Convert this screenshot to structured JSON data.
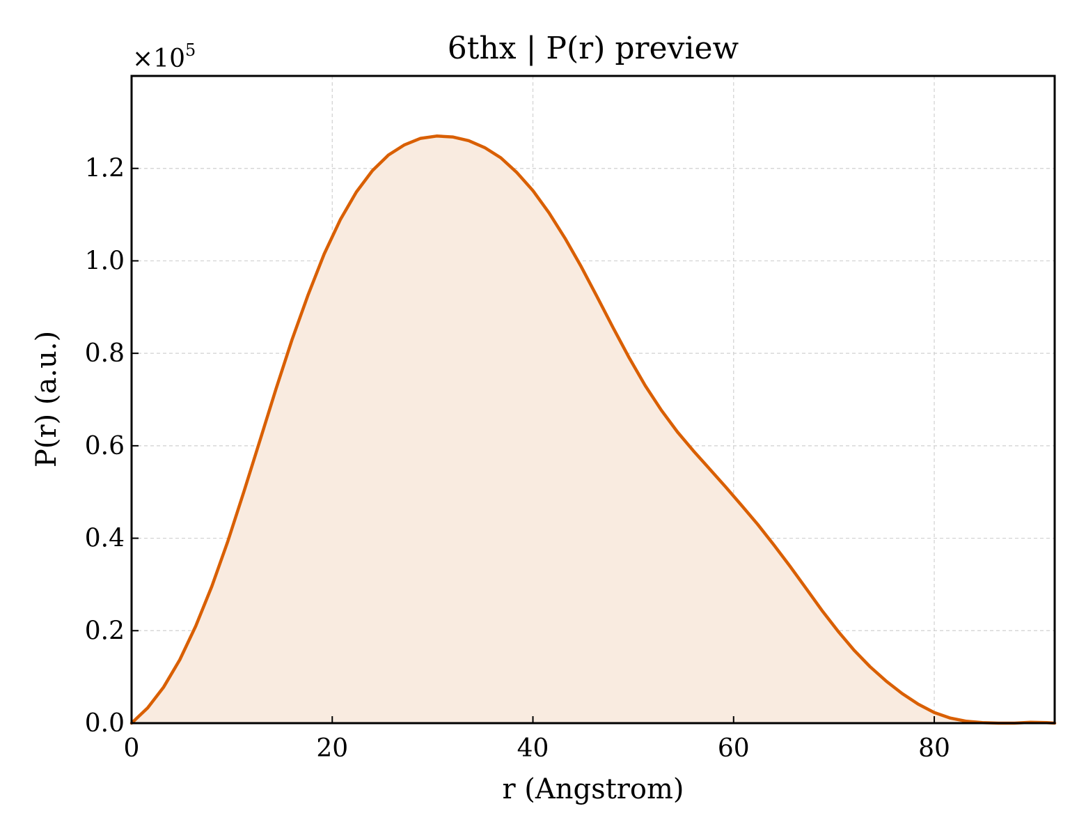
{
  "chart_data": {
    "type": "area",
    "title": "6thx | P(r) preview",
    "xlabel": "r (Angstrom)",
    "ylabel": "P(r) (a.u.)",
    "y_multiplier": {
      "base": "×10",
      "exponent": "5"
    },
    "xlim": [
      0,
      92
    ],
    "ylim": [
      0,
      1.4
    ],
    "x_ticks": [
      0,
      20,
      40,
      60,
      80
    ],
    "x_tick_labels": [
      "0",
      "20",
      "40",
      "60",
      "80"
    ],
    "y_ticks": [
      0.0,
      0.2,
      0.4,
      0.6,
      0.8,
      1.0,
      1.2
    ],
    "y_tick_labels": [
      "0.0",
      "0.2",
      "0.4",
      "0.6",
      "0.8",
      "1.0",
      "1.2"
    ],
    "grid": true,
    "line_color": "#d95f02",
    "fill_color": "#f9ebe0",
    "series": [
      {
        "x": [
          0,
          1.6,
          3.2,
          4.8,
          6.4,
          8.0,
          9.6,
          11.2,
          12.8,
          14.4,
          16.0,
          17.6,
          19.2,
          20.8,
          22.4,
          24.0,
          25.6,
          27.2,
          28.8,
          30.4,
          32.0,
          33.6,
          35.2,
          36.8,
          38.4,
          40.0,
          41.6,
          43.2,
          44.8,
          46.4,
          48.0,
          49.6,
          51.2,
          52.8,
          54.4,
          56.0,
          57.6,
          59.2,
          60.8,
          62.4,
          64.0,
          65.6,
          67.2,
          68.8,
          70.4,
          72.0,
          73.6,
          75.2,
          76.8,
          78.4,
          80.0,
          81.6,
          83.2,
          84.8,
          86.4,
          88.0,
          89.6,
          91.2,
          92.0
        ],
        "y": [
          0.0,
          0.033,
          0.078,
          0.137,
          0.21,
          0.296,
          0.394,
          0.501,
          0.612,
          0.723,
          0.83,
          0.927,
          1.015,
          1.089,
          1.149,
          1.195,
          1.229,
          1.251,
          1.265,
          1.27,
          1.268,
          1.26,
          1.245,
          1.223,
          1.191,
          1.152,
          1.104,
          1.049,
          0.988,
          0.922,
          0.855,
          0.79,
          0.73,
          0.677,
          0.63,
          0.589,
          0.55,
          0.511,
          0.471,
          0.43,
          0.386,
          0.34,
          0.292,
          0.244,
          0.199,
          0.158,
          0.122,
          0.091,
          0.064,
          0.041,
          0.023,
          0.011,
          0.004,
          0.001,
          0.0,
          0.0,
          0.002,
          0.001,
          0.0
        ]
      }
    ]
  }
}
